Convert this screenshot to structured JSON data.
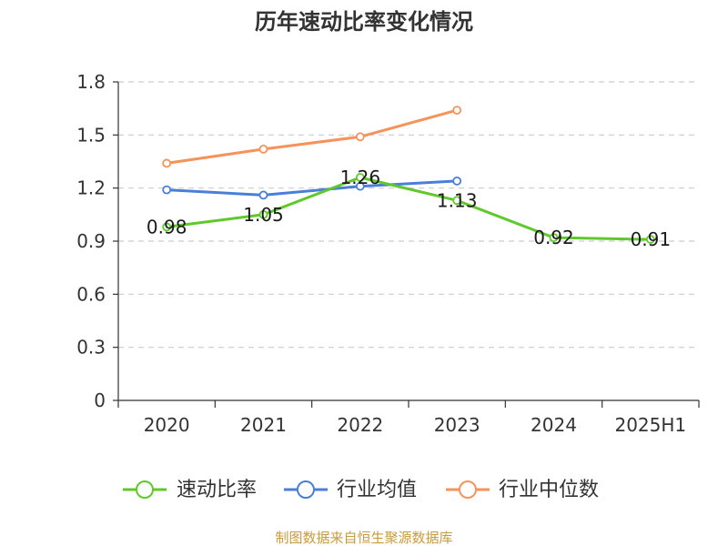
{
  "chart_data": {
    "type": "line",
    "title": "历年速动比率变化情况",
    "categories": [
      "2020",
      "2021",
      "2022",
      "2023",
      "2024",
      "2025H1"
    ],
    "ylim": [
      0,
      1.8
    ],
    "yticks": [
      "0",
      "0.3",
      "0.6",
      "0.9",
      "1.2",
      "1.5",
      "1.8"
    ],
    "grid": true,
    "legend_position": "bottom",
    "series": [
      {
        "name": "速动比率",
        "color": "#5fc92b",
        "values": [
          0.98,
          1.05,
          1.26,
          1.13,
          0.92,
          0.91
        ],
        "labels": [
          "0.98",
          "1.05",
          "1.26",
          "1.13",
          "0.92",
          "0.91"
        ]
      },
      {
        "name": "行业均值",
        "color": "#4a7fd9",
        "values": [
          1.19,
          1.16,
          1.21,
          1.24,
          null,
          null
        ]
      },
      {
        "name": "行业中位数",
        "color": "#f5935a",
        "values": [
          1.34,
          1.42,
          1.49,
          1.64,
          null,
          null
        ]
      }
    ]
  },
  "source": "制图数据来自恒生聚源数据库"
}
